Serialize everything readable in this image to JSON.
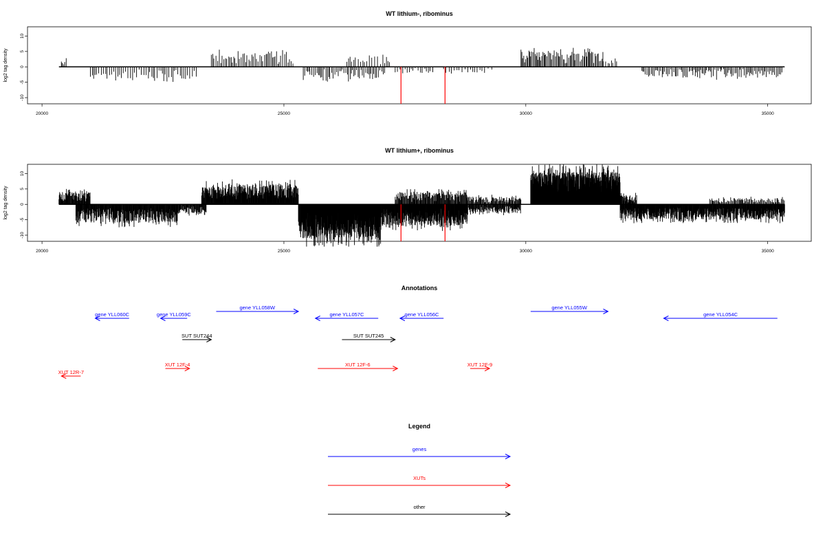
{
  "chart_data": [
    {
      "type": "bar",
      "title": "WT lithium-, ribominus",
      "ylabel": "log2 tag density",
      "xlabel": "",
      "xlim": [
        19700,
        35900
      ],
      "ylim": [
        -12,
        13
      ],
      "xticks": [
        20000,
        25000,
        30000,
        35000
      ],
      "xtick_labels": [
        "20000",
        "25000",
        "30000",
        "35000"
      ],
      "yticks": [
        -10,
        -5,
        0,
        5,
        10
      ],
      "ytick_labels": [
        "-10",
        "-5",
        "0",
        "5",
        "10"
      ],
      "bar_color": "#000000",
      "marker_color": "#ff0000",
      "markers": [
        {
          "x": 27420,
          "y": -12
        },
        {
          "x": 28330,
          "y": -12
        }
      ],
      "regions": [
        {
          "start": 20400,
          "end": 20500,
          "amp": 2.5,
          "sign": 1,
          "step": 25
        },
        {
          "start": 21000,
          "end": 23200,
          "amp": 4,
          "sign": -1,
          "step": 40
        },
        {
          "start": 23500,
          "end": 25200,
          "amp": 4.5,
          "sign": 1,
          "step": 32
        },
        {
          "start": 25400,
          "end": 27100,
          "amp": 4,
          "sign": -1,
          "step": 30
        },
        {
          "start": 26300,
          "end": 27200,
          "amp": 4,
          "sign": 1,
          "step": 45
        },
        {
          "start": 27300,
          "end": 28100,
          "amp": 2,
          "sign": -1,
          "step": 45
        },
        {
          "start": 28300,
          "end": 29300,
          "amp": 2,
          "sign": -1,
          "step": 55
        },
        {
          "start": 29900,
          "end": 31600,
          "amp": 5,
          "sign": 1,
          "step": 22
        },
        {
          "start": 31600,
          "end": 31900,
          "amp": 2.5,
          "sign": 1,
          "step": 40
        },
        {
          "start": 32400,
          "end": 35300,
          "amp": 3.5,
          "sign": -1,
          "step": 28
        }
      ],
      "baseline": [
        20350,
        35350
      ]
    },
    {
      "type": "bar",
      "title": "WT lithium+, ribominus",
      "ylabel": "log2 tag density",
      "xlabel": "",
      "xlim": [
        19700,
        35900
      ],
      "ylim": [
        -12,
        13
      ],
      "xticks": [
        20000,
        25000,
        30000,
        35000
      ],
      "xtick_labels": [
        "20000",
        "25000",
        "30000",
        "35000"
      ],
      "yticks": [
        -10,
        -5,
        0,
        5,
        10
      ],
      "ytick_labels": [
        "-10",
        "-5",
        "0",
        "5",
        "10"
      ],
      "bar_color": "#000000",
      "marker_color": "#ff0000",
      "markers": [
        {
          "x": 27420,
          "y": -12
        },
        {
          "x": 28330,
          "y": -12
        }
      ],
      "regions": [
        {
          "start": 20350,
          "end": 21000,
          "amp": 4,
          "sign": 1,
          "step": 9
        },
        {
          "start": 20700,
          "end": 22800,
          "amp": 6,
          "sign": -1,
          "step": 8
        },
        {
          "start": 22800,
          "end": 23400,
          "amp": 3,
          "sign": -1,
          "step": 10
        },
        {
          "start": 23300,
          "end": 25300,
          "amp": 6.5,
          "sign": 1,
          "step": 7
        },
        {
          "start": 25300,
          "end": 27000,
          "amp": 11,
          "sign": -1,
          "step": 4
        },
        {
          "start": 27000,
          "end": 28800,
          "amp": 7,
          "sign": -1,
          "step": 6
        },
        {
          "start": 27300,
          "end": 28800,
          "amp": 4,
          "sign": 1,
          "step": 12
        },
        {
          "start": 28800,
          "end": 29900,
          "amp": 3,
          "sign": -1,
          "step": 10
        },
        {
          "start": 28800,
          "end": 29900,
          "amp": 2.5,
          "sign": 1,
          "step": 14
        },
        {
          "start": 30100,
          "end": 31950,
          "amp": 10.5,
          "sign": 1,
          "step": 3
        },
        {
          "start": 31950,
          "end": 32300,
          "amp": 3,
          "sign": 1,
          "step": 10
        },
        {
          "start": 31950,
          "end": 35350,
          "amp": 5,
          "sign": -1,
          "step": 7
        },
        {
          "start": 33800,
          "end": 35350,
          "amp": 2,
          "sign": 1,
          "step": 18
        }
      ],
      "baseline": [
        20350,
        35350
      ]
    }
  ],
  "annotations": {
    "title": "Annotations",
    "genes_color": "#0000ff",
    "xuts_color": "#ff0000",
    "other_color": "#000000",
    "features": [
      {
        "label": "gene YLL060C",
        "kind": "gene",
        "start": 21800,
        "end": 21100,
        "row": 2
      },
      {
        "label": "gene YLL059C",
        "kind": "gene",
        "start": 23000,
        "end": 22450,
        "row": 2
      },
      {
        "label": "gene YLL058W",
        "kind": "gene",
        "start": 23600,
        "end": 25300,
        "row": 1
      },
      {
        "label": "gene YLL057C",
        "kind": "gene",
        "start": 26950,
        "end": 25650,
        "row": 2
      },
      {
        "label": "gene YLL056C",
        "kind": "gene",
        "start": 28300,
        "end": 27400,
        "row": 2
      },
      {
        "label": "gene YLL055W",
        "kind": "gene",
        "start": 30100,
        "end": 31700,
        "row": 1
      },
      {
        "label": "gene YLL054C",
        "kind": "gene",
        "start": 35200,
        "end": 32850,
        "row": 2
      },
      {
        "label": "SUT SUT244",
        "kind": "other",
        "start": 22900,
        "end": 23500,
        "row": 3
      },
      {
        "label": "SUT SUT245",
        "kind": "other",
        "start": 26200,
        "end": 27300,
        "row": 3
      },
      {
        "label": "XUT 12R-7",
        "kind": "xut",
        "start": 20800,
        "end": 20400,
        "row": 5
      },
      {
        "label": "XUT 12F-4",
        "kind": "xut",
        "start": 22550,
        "end": 23050,
        "row": 4
      },
      {
        "label": "XUT 12F-6",
        "kind": "xut",
        "start": 25700,
        "end": 27350,
        "row": 4
      },
      {
        "label": "XUT 12F-9",
        "kind": "xut",
        "start": 28850,
        "end": 29250,
        "row": 4
      }
    ]
  },
  "legend": {
    "title": "Legend",
    "items": [
      {
        "label": "genes",
        "color": "#0000ff"
      },
      {
        "label": "XUTs",
        "color": "#ff0000"
      },
      {
        "label": "other",
        "color": "#000000"
      }
    ]
  }
}
